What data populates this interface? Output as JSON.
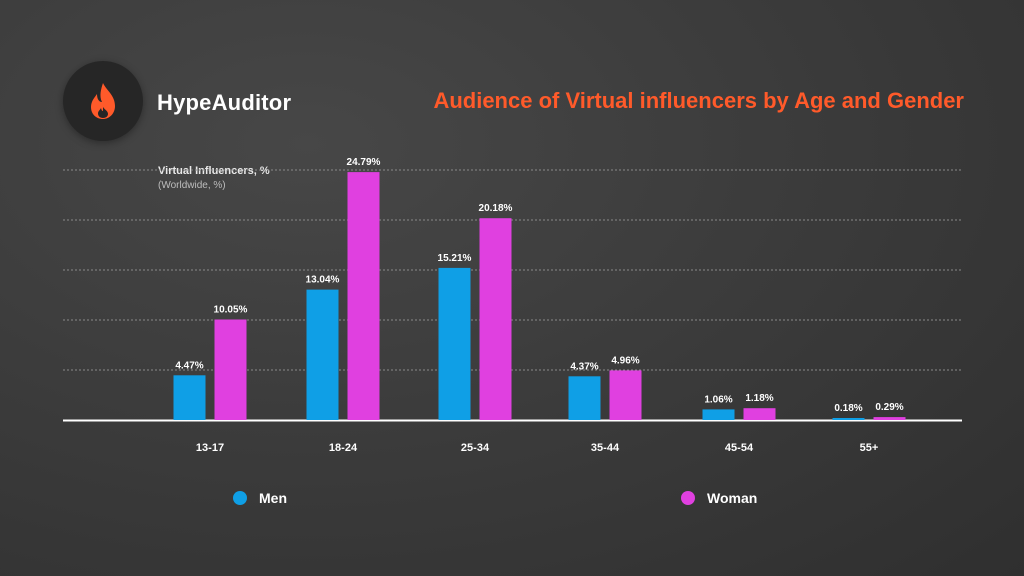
{
  "brand": {
    "name": "HypeAuditor",
    "logo_icon": "flame-icon",
    "logo_color": "#ff5a2a"
  },
  "colors": {
    "men": "#0f9fe6",
    "woman": "#e040e0",
    "title": "#ff5a2a"
  },
  "chart_data": {
    "type": "bar",
    "title": "Audience of Virtual influencers by Age and Gender",
    "subtitle": "Virtual Influencers, %",
    "subtitle_note": "(Worldwide, %)",
    "categories": [
      "13-17",
      "18-24",
      "25-34",
      "35-44",
      "45-54",
      "55+"
    ],
    "series": [
      {
        "name": "Men",
        "values": [
          4.47,
          13.04,
          15.21,
          4.37,
          1.06,
          0.18
        ],
        "labels": [
          "4.47%",
          "13.04%",
          "15.21%",
          "4.37%",
          "1.06%",
          "0.18%"
        ]
      },
      {
        "name": "Woman",
        "values": [
          10.05,
          24.79,
          20.18,
          4.96,
          1.18,
          0.29
        ],
        "labels": [
          "10.05%",
          "24.79%",
          "20.18%",
          "4.96%",
          "1.18%",
          "0.29%"
        ]
      }
    ],
    "ylim": [
      0,
      25
    ],
    "grid": true,
    "legend": "bottom"
  }
}
